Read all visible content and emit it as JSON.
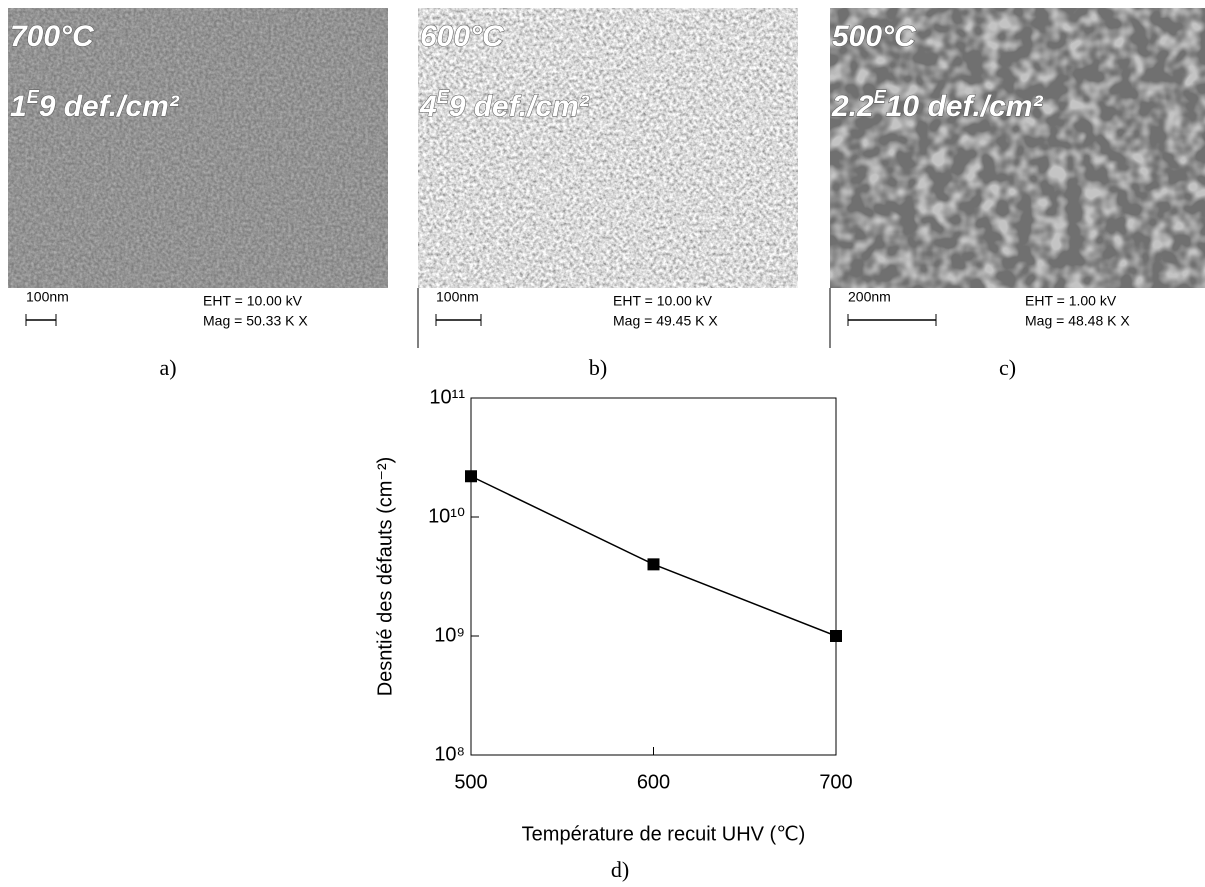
{
  "panels": [
    {
      "temperature": "700°C",
      "density_lead": "1",
      "density_sup": "E",
      "density_tail": "9 def./cm²",
      "scale": "100nm",
      "eht": "EHT = 10.00 kV",
      "mag": "Mag =  50.33 K X",
      "label": "a)"
    },
    {
      "temperature": "600°C",
      "density_lead": "4",
      "density_sup": "E",
      "density_tail": "9 def./cm²",
      "scale": "100nm",
      "eht": "EHT = 10.00 kV",
      "mag": "Mag = 49.45 K X",
      "label": "b)"
    },
    {
      "temperature": "500°C",
      "density_lead": "2.2",
      "density_sup": "E",
      "density_tail": "10 def./cm²",
      "scale": "200nm",
      "eht": "EHT = 1.00 kV",
      "mag": "Mag = 48.48 K X",
      "label": "c)"
    }
  ],
  "chart_data": {
    "type": "line",
    "label": "d)",
    "x_label": "Température de recuit UHV (℃)",
    "y_label": "Desntié des défauts (cm⁻²)",
    "x": [
      500,
      600,
      700
    ],
    "values": [
      22000000000,
      4000000000,
      1000000000
    ],
    "color": "#000000",
    "xlim": [
      500,
      700
    ],
    "xticks": [
      500,
      600,
      700
    ],
    "ylim": [
      100000000,
      100000000000
    ],
    "log_y": true,
    "yticks": [
      {
        "value": 100000000,
        "label": "10⁸"
      },
      {
        "value": 1000000000,
        "label": "10⁹"
      },
      {
        "value": 10000000000,
        "label": "10¹⁰"
      },
      {
        "value": 100000000000,
        "label": "10¹¹"
      }
    ]
  }
}
